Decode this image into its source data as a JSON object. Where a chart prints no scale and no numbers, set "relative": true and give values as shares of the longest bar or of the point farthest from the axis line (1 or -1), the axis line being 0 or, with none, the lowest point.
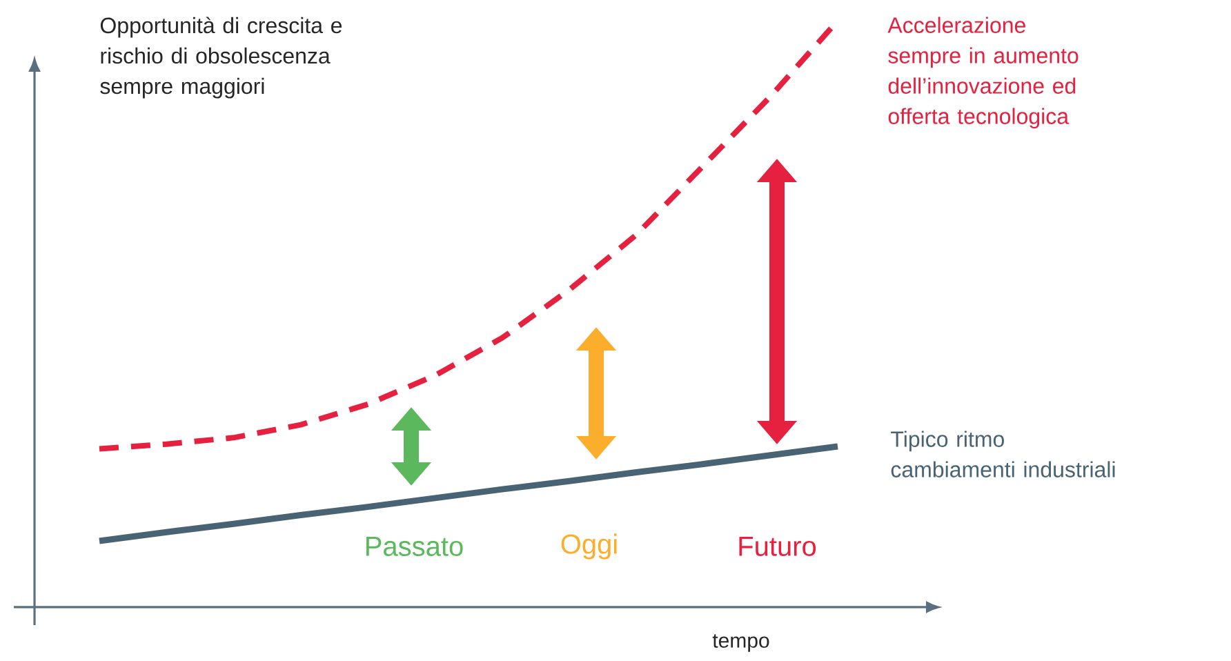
{
  "chart_data": {
    "type": "line",
    "relative": true,
    "ylabel": "Opportunità di crescita e rischio di obsolescenza sempre maggiori",
    "xlabel": "tempo",
    "categories": [
      null,
      null,
      null,
      null,
      null,
      null,
      null,
      null,
      null,
      null,
      null,
      null
    ],
    "marker": "none",
    "legend": false,
    "series": [
      {
        "name": "Accelerazione sempre in aumento dell’innovazione ed offerta tecnologica",
        "color": "#e5213f",
        "line_style": "dashed",
        "values": [
          0.27,
          0.278,
          0.289,
          0.311,
          0.346,
          0.395,
          0.459,
          0.541,
          0.635,
          0.753,
          0.871,
          1.0
        ]
      },
      {
        "name": "Tipico ritmo cambiamenti industriali",
        "color": "#4a6374",
        "line_style": "solid",
        "values": [
          0.113,
          0.128,
          0.142,
          0.157,
          0.171,
          0.186,
          0.201,
          0.215,
          0.23,
          0.244,
          0.259,
          0.274
        ]
      }
    ],
    "annotations": [
      "Passato",
      "Oggi",
      "Futuro"
    ]
  }
}
